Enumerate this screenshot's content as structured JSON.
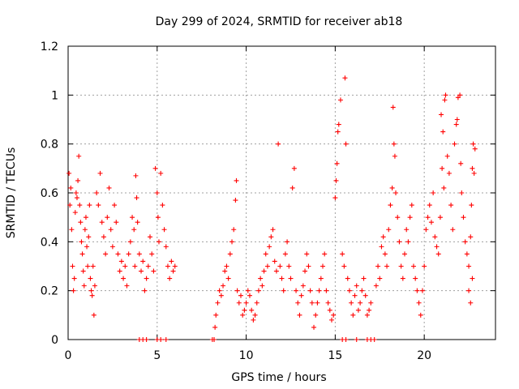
{
  "chart_data": {
    "type": "scatter",
    "title": "Day 299 of 2024, SRMTID for receiver ab18",
    "xlabel": "GPS time / hours",
    "ylabel": "SRMTID / TECUs",
    "xlim": [
      0,
      24
    ],
    "ylim": [
      0,
      1.2
    ],
    "x_ticks": [
      0,
      5,
      10,
      15,
      20
    ],
    "x_tick_labels": [
      "0",
      "5",
      "10",
      "15",
      "20"
    ],
    "y_ticks": [
      0,
      0.2,
      0.4,
      0.6,
      0.8,
      1.0,
      1.2
    ],
    "y_tick_labels": [
      "0",
      "0.2",
      "0.4",
      "0.6",
      "0.8",
      "1",
      "1.2"
    ],
    "grid": true,
    "marker": "plus",
    "series": [
      {
        "name": "SRMTID",
        "color": "#ff0000",
        "points": [
          [
            0.05,
            0.68
          ],
          [
            0.1,
            0.55
          ],
          [
            0.15,
            0.62
          ],
          [
            0.2,
            0.45
          ],
          [
            0.25,
            0.3
          ],
          [
            0.3,
            0.2
          ],
          [
            0.35,
            0.25
          ],
          [
            0.4,
            0.52
          ],
          [
            0.45,
            0.6
          ],
          [
            0.5,
            0.58
          ],
          [
            0.55,
            0.65
          ],
          [
            0.6,
            0.75
          ],
          [
            0.65,
            0.55
          ],
          [
            0.7,
            0.48
          ],
          [
            0.75,
            0.4
          ],
          [
            0.8,
            0.35
          ],
          [
            0.85,
            0.28
          ],
          [
            0.9,
            0.22
          ],
          [
            0.95,
            0.45
          ],
          [
            1.0,
            0.5
          ],
          [
            1.05,
            0.38
          ],
          [
            1.1,
            0.3
          ],
          [
            1.15,
            0.42
          ],
          [
            1.2,
            0.55
          ],
          [
            1.25,
            0.25
          ],
          [
            1.3,
            0.2
          ],
          [
            1.35,
            0.18
          ],
          [
            1.4,
            0.3
          ],
          [
            1.45,
            0.1
          ],
          [
            1.5,
            0.22
          ],
          [
            1.6,
            0.6
          ],
          [
            1.7,
            0.55
          ],
          [
            1.8,
            0.68
          ],
          [
            1.9,
            0.48
          ],
          [
            2.0,
            0.42
          ],
          [
            2.1,
            0.35
          ],
          [
            2.2,
            0.5
          ],
          [
            2.3,
            0.62
          ],
          [
            2.4,
            0.45
          ],
          [
            2.5,
            0.38
          ],
          [
            2.6,
            0.55
          ],
          [
            2.7,
            0.48
          ],
          [
            2.8,
            0.35
          ],
          [
            2.9,
            0.28
          ],
          [
            3.0,
            0.32
          ],
          [
            3.1,
            0.25
          ],
          [
            3.2,
            0.3
          ],
          [
            3.3,
            0.22
          ],
          [
            3.4,
            0.35
          ],
          [
            3.5,
            0.4
          ],
          [
            3.6,
            0.5
          ],
          [
            3.7,
            0.45
          ],
          [
            3.75,
            0.3
          ],
          [
            3.8,
            0.67
          ],
          [
            3.85,
            0.58
          ],
          [
            3.9,
            0.48
          ],
          [
            4.0,
            0.35
          ],
          [
            4.1,
            0.28
          ],
          [
            4.2,
            0.32
          ],
          [
            4.3,
            0.2
          ],
          [
            4.4,
            0.25
          ],
          [
            4.5,
            0.3
          ],
          [
            4.6,
            0.42
          ],
          [
            4.7,
            0.35
          ],
          [
            4.8,
            0.28
          ],
          [
            4.9,
            0.7
          ],
          [
            5.0,
            0.6
          ],
          [
            5.05,
            0.5
          ],
          [
            5.1,
            0.4
          ],
          [
            5.2,
            0.68
          ],
          [
            5.3,
            0.55
          ],
          [
            5.4,
            0.45
          ],
          [
            5.5,
            0.38
          ],
          [
            5.6,
            0.3
          ],
          [
            5.7,
            0.25
          ],
          [
            5.8,
            0.32
          ],
          [
            5.9,
            0.28
          ],
          [
            6.0,
            0.3
          ],
          [
            4.0,
            0.0
          ],
          [
            4.2,
            0.0
          ],
          [
            4.4,
            0.0
          ],
          [
            5.0,
            0.0
          ],
          [
            5.2,
            0.0
          ],
          [
            5.5,
            0.0
          ],
          [
            8.1,
            0.0
          ],
          [
            8.2,
            0.0
          ],
          [
            8.25,
            0.05
          ],
          [
            8.3,
            0.1
          ],
          [
            8.4,
            0.15
          ],
          [
            8.5,
            0.2
          ],
          [
            8.6,
            0.18
          ],
          [
            8.7,
            0.22
          ],
          [
            8.8,
            0.28
          ],
          [
            8.9,
            0.3
          ],
          [
            9.0,
            0.25
          ],
          [
            9.1,
            0.35
          ],
          [
            9.2,
            0.4
          ],
          [
            9.3,
            0.45
          ],
          [
            9.4,
            0.57
          ],
          [
            9.45,
            0.65
          ],
          [
            9.5,
            0.2
          ],
          [
            9.6,
            0.15
          ],
          [
            9.7,
            0.18
          ],
          [
            9.8,
            0.1
          ],
          [
            9.9,
            0.12
          ],
          [
            10.0,
            0.15
          ],
          [
            10.1,
            0.2
          ],
          [
            10.2,
            0.18
          ],
          [
            10.3,
            0.12
          ],
          [
            10.4,
            0.08
          ],
          [
            10.5,
            0.1
          ],
          [
            10.6,
            0.15
          ],
          [
            10.7,
            0.2
          ],
          [
            10.8,
            0.25
          ],
          [
            10.9,
            0.22
          ],
          [
            11.0,
            0.28
          ],
          [
            11.1,
            0.35
          ],
          [
            11.2,
            0.3
          ],
          [
            11.3,
            0.38
          ],
          [
            11.4,
            0.42
          ],
          [
            11.5,
            0.45
          ],
          [
            11.6,
            0.32
          ],
          [
            11.7,
            0.28
          ],
          [
            11.8,
            0.8
          ],
          [
            11.9,
            0.3
          ],
          [
            12.0,
            0.25
          ],
          [
            12.1,
            0.2
          ],
          [
            12.2,
            0.35
          ],
          [
            12.3,
            0.4
          ],
          [
            12.4,
            0.3
          ],
          [
            12.5,
            0.25
          ],
          [
            12.6,
            0.62
          ],
          [
            12.7,
            0.7
          ],
          [
            12.8,
            0.2
          ],
          [
            12.9,
            0.15
          ],
          [
            13.0,
            0.1
          ],
          [
            13.1,
            0.18
          ],
          [
            13.2,
            0.22
          ],
          [
            13.3,
            0.28
          ],
          [
            13.4,
            0.35
          ],
          [
            13.5,
            0.3
          ],
          [
            13.6,
            0.2
          ],
          [
            13.7,
            0.15
          ],
          [
            13.8,
            0.05
          ],
          [
            13.9,
            0.1
          ],
          [
            14.0,
            0.15
          ],
          [
            14.1,
            0.2
          ],
          [
            14.2,
            0.25
          ],
          [
            14.3,
            0.3
          ],
          [
            14.4,
            0.35
          ],
          [
            14.5,
            0.2
          ],
          [
            14.6,
            0.15
          ],
          [
            14.7,
            0.12
          ],
          [
            14.8,
            0.08
          ],
          [
            14.9,
            0.1
          ],
          [
            15.0,
            0.58
          ],
          [
            15.05,
            0.65
          ],
          [
            15.1,
            0.72
          ],
          [
            15.15,
            0.85
          ],
          [
            15.2,
            0.88
          ],
          [
            15.3,
            0.98
          ],
          [
            15.4,
            0.35
          ],
          [
            15.5,
            0.3
          ],
          [
            15.55,
            1.07
          ],
          [
            15.6,
            0.8
          ],
          [
            15.7,
            0.25
          ],
          [
            15.8,
            0.2
          ],
          [
            15.9,
            0.15
          ],
          [
            16.0,
            0.1
          ],
          [
            16.1,
            0.18
          ],
          [
            16.2,
            0.22
          ],
          [
            16.3,
            0.12
          ],
          [
            16.4,
            0.15
          ],
          [
            16.5,
            0.2
          ],
          [
            16.6,
            0.25
          ],
          [
            16.7,
            0.18
          ],
          [
            16.8,
            0.1
          ],
          [
            16.9,
            0.12
          ],
          [
            17.0,
            0.15
          ],
          [
            15.4,
            0.0
          ],
          [
            15.6,
            0.0
          ],
          [
            16.2,
            0.0
          ],
          [
            16.8,
            0.0
          ],
          [
            17.0,
            0.0
          ],
          [
            17.2,
            0.0
          ],
          [
            17.3,
            0.22
          ],
          [
            17.4,
            0.3
          ],
          [
            17.5,
            0.25
          ],
          [
            17.6,
            0.38
          ],
          [
            17.7,
            0.42
          ],
          [
            17.8,
            0.35
          ],
          [
            17.9,
            0.3
          ],
          [
            18.0,
            0.45
          ],
          [
            18.1,
            0.55
          ],
          [
            18.2,
            0.62
          ],
          [
            18.25,
            0.95
          ],
          [
            18.3,
            0.8
          ],
          [
            18.35,
            0.75
          ],
          [
            18.4,
            0.6
          ],
          [
            18.5,
            0.5
          ],
          [
            18.6,
            0.4
          ],
          [
            18.7,
            0.3
          ],
          [
            18.8,
            0.25
          ],
          [
            18.9,
            0.35
          ],
          [
            19.0,
            0.45
          ],
          [
            19.1,
            0.4
          ],
          [
            19.2,
            0.5
          ],
          [
            19.3,
            0.55
          ],
          [
            19.4,
            0.3
          ],
          [
            19.5,
            0.25
          ],
          [
            19.6,
            0.2
          ],
          [
            19.7,
            0.15
          ],
          [
            19.8,
            0.1
          ],
          [
            19.9,
            0.2
          ],
          [
            20.0,
            0.3
          ],
          [
            20.1,
            0.45
          ],
          [
            20.2,
            0.5
          ],
          [
            20.3,
            0.55
          ],
          [
            20.4,
            0.48
          ],
          [
            20.5,
            0.6
          ],
          [
            20.6,
            0.42
          ],
          [
            20.7,
            0.38
          ],
          [
            20.8,
            0.35
          ],
          [
            20.9,
            0.5
          ],
          [
            20.95,
            0.92
          ],
          [
            21.0,
            0.7
          ],
          [
            21.05,
            0.85
          ],
          [
            21.1,
            0.62
          ],
          [
            21.15,
            0.98
          ],
          [
            21.2,
            1.0
          ],
          [
            21.3,
            0.75
          ],
          [
            21.4,
            0.68
          ],
          [
            21.5,
            0.55
          ],
          [
            21.6,
            0.45
          ],
          [
            21.7,
            0.8
          ],
          [
            21.8,
            0.88
          ],
          [
            21.85,
            0.9
          ],
          [
            21.9,
            0.99
          ],
          [
            22.0,
            1.0
          ],
          [
            22.05,
            0.72
          ],
          [
            22.1,
            0.6
          ],
          [
            22.2,
            0.5
          ],
          [
            22.3,
            0.4
          ],
          [
            22.4,
            0.35
          ],
          [
            22.5,
            0.3
          ],
          [
            22.6,
            0.42
          ],
          [
            22.65,
            0.55
          ],
          [
            22.7,
            0.7
          ],
          [
            22.75,
            0.8
          ],
          [
            22.8,
            0.68
          ],
          [
            22.85,
            0.78
          ],
          [
            22.5,
            0.2
          ],
          [
            22.6,
            0.15
          ],
          [
            22.7,
            0.25
          ]
        ]
      }
    ]
  }
}
